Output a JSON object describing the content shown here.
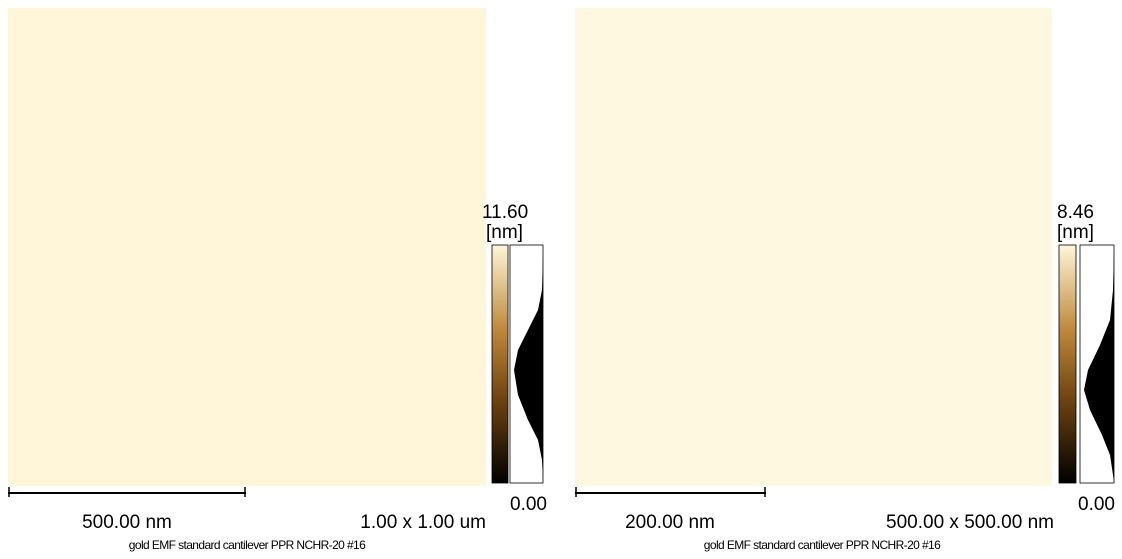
{
  "panels": [
    {
      "max_label": "11.60",
      "unit": "[nm]",
      "min_label": "0.00",
      "scale_bar": "500.00 nm",
      "scan_size": "1.00 x 1.00 um",
      "caption": "gold EMF standard cantilever PPR NCHR-20 #16"
    },
    {
      "max_label": "8.46",
      "unit": "[nm]",
      "min_label": "0.00",
      "scale_bar": "200.00 nm",
      "scan_size": "500.00 x 500.00 nm",
      "caption": "gold EMF standard cantilever PPR NCHR-20 #16"
    }
  ]
}
